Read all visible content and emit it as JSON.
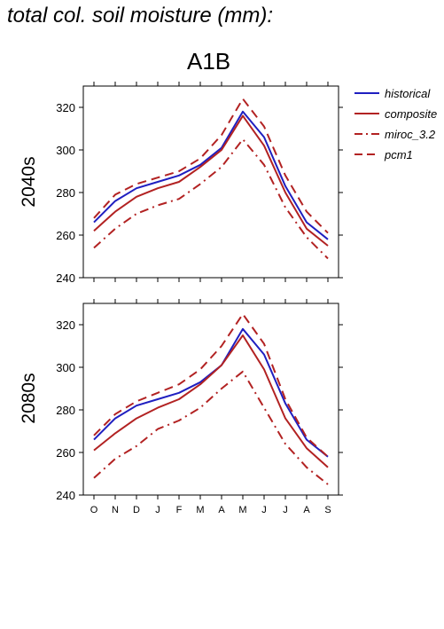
{
  "title": "total col. soil moisture (mm):",
  "scenario": "A1B",
  "colors": {
    "historical": "#1f1fc0",
    "composite": "#b22222",
    "miroc_3.2": "#b22222",
    "pcm1": "#b22222"
  },
  "chart_data": [
    {
      "type": "line",
      "row_label": "2040s",
      "categories": [
        "O",
        "N",
        "D",
        "J",
        "F",
        "M",
        "A",
        "M",
        "J",
        "J",
        "A",
        "S"
      ],
      "ylim": [
        240,
        330
      ],
      "yticks": [
        240,
        260,
        280,
        300,
        320
      ],
      "series": [
        {
          "name": "historical",
          "style": "solid",
          "values": [
            266,
            276,
            282,
            285,
            288,
            293,
            301,
            318,
            306,
            283,
            266,
            258
          ]
        },
        {
          "name": "composite",
          "style": "solid",
          "values": [
            262,
            271,
            278,
            282,
            285,
            292,
            300,
            316,
            302,
            280,
            263,
            255
          ]
        },
        {
          "name": "miroc_3.2",
          "style": "dash-dot",
          "values": [
            254,
            263,
            270,
            274,
            277,
            284,
            292,
            305,
            293,
            273,
            259,
            249
          ]
        },
        {
          "name": "pcm1",
          "style": "dash",
          "values": [
            268,
            279,
            284,
            287,
            290,
            296,
            307,
            324,
            311,
            288,
            271,
            261
          ]
        }
      ]
    },
    {
      "type": "line",
      "row_label": "2080s",
      "categories": [
        "O",
        "N",
        "D",
        "J",
        "F",
        "M",
        "A",
        "M",
        "J",
        "J",
        "A",
        "S"
      ],
      "ylim": [
        240,
        330
      ],
      "yticks": [
        240,
        260,
        280,
        300,
        320
      ],
      "series": [
        {
          "name": "historical",
          "style": "solid",
          "values": [
            266,
            276,
            282,
            285,
            288,
            293,
            301,
            318,
            306,
            283,
            266,
            258
          ]
        },
        {
          "name": "composite",
          "style": "solid",
          "values": [
            261,
            269,
            276,
            281,
            285,
            292,
            301,
            315,
            299,
            276,
            262,
            253
          ]
        },
        {
          "name": "miroc_3.2",
          "style": "dash-dot",
          "values": [
            248,
            257,
            263,
            271,
            275,
            281,
            290,
            298,
            281,
            264,
            253,
            245
          ]
        },
        {
          "name": "pcm1",
          "style": "dash",
          "values": [
            268,
            278,
            284,
            288,
            292,
            299,
            310,
            325,
            311,
            285,
            267,
            258
          ]
        }
      ]
    }
  ],
  "legend": [
    {
      "name": "historical",
      "style": "solid"
    },
    {
      "name": "composite",
      "style": "solid"
    },
    {
      "name": "miroc_3.2",
      "style": "dash-dot"
    },
    {
      "name": "pcm1",
      "style": "dash"
    }
  ]
}
